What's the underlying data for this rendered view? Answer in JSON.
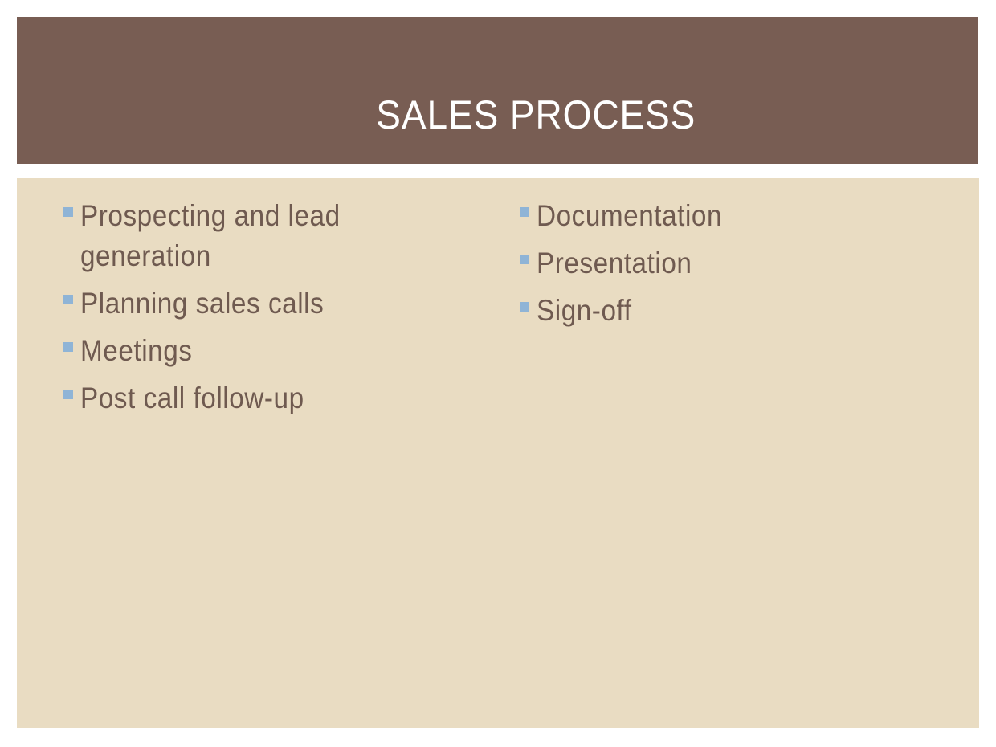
{
  "slide": {
    "title": "SALES PROCESS",
    "colors": {
      "title_band": "#785d53",
      "content_panel": "#e9dcc2",
      "body_text": "#6f5a50",
      "bullet": "#8fb4d6",
      "title_text": "#ffffff"
    },
    "left_column": {
      "items": [
        {
          "line1": "Prospecting and lead",
          "line2": "generation"
        },
        {
          "line1": "Planning sales calls",
          "line2": ""
        },
        {
          "line1": "Meetings",
          "line2": ""
        },
        {
          "line1": "Post call follow-up",
          "line2": ""
        }
      ]
    },
    "right_column": {
      "items": [
        {
          "line1": "Documentation"
        },
        {
          "line1": "Presentation"
        },
        {
          "line1": "Sign-off"
        }
      ]
    }
  }
}
